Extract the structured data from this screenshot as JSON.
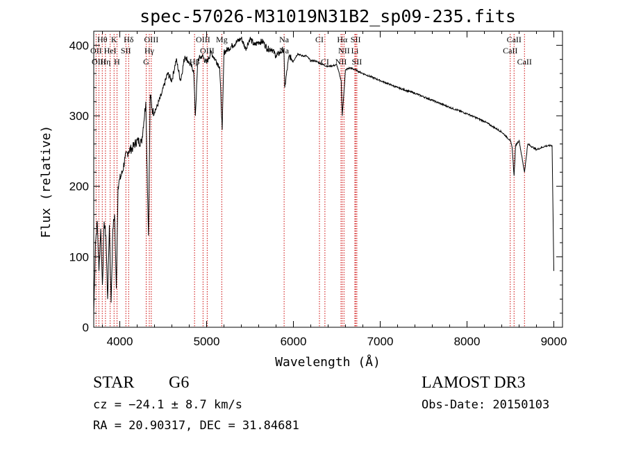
{
  "chart_data": {
    "type": "line",
    "title": "spec-57026-M31019N31B2_sp09-235.fits",
    "xlabel": "Wavelength (Å)",
    "ylabel": "Flux (relative)",
    "xlim": [
      3700,
      9100
    ],
    "ylim": [
      0,
      420
    ],
    "xticks": [
      4000,
      5000,
      6000,
      7000,
      8000,
      9000
    ],
    "yticks": [
      0,
      100,
      200,
      300,
      400
    ],
    "x_tick_labels": [
      "4000",
      "5000",
      "6000",
      "7000",
      "8000",
      "9000"
    ],
    "y_tick_labels": [
      "0",
      "100",
      "200",
      "300",
      "400"
    ],
    "grid": false,
    "series": [
      {
        "name": "flux",
        "x": [
          3700,
          3720,
          3740,
          3760,
          3780,
          3800,
          3820,
          3840,
          3860,
          3880,
          3900,
          3920,
          3940,
          3960,
          3980,
          4000,
          4030,
          4060,
          4100,
          4150,
          4200,
          4250,
          4300,
          4330,
          4350,
          4380,
          4420,
          4480,
          4550,
          4600,
          4650,
          4700,
          4750,
          4800,
          4850,
          4870,
          4900,
          4950,
          5000,
          5050,
          5100,
          5150,
          5180,
          5200,
          5250,
          5300,
          5350,
          5400,
          5450,
          5500,
          5550,
          5600,
          5650,
          5700,
          5750,
          5800,
          5850,
          5890,
          5900,
          5950,
          6000,
          6050,
          6100,
          6150,
          6200,
          6250,
          6300,
          6350,
          6400,
          6450,
          6500,
          6550,
          6563,
          6600,
          6650,
          6700,
          6800,
          6900,
          7000,
          7200,
          7400,
          7600,
          7800,
          8000,
          8200,
          8400,
          8498,
          8520,
          8542,
          8560,
          8600,
          8662,
          8700,
          8800,
          8900,
          8980,
          9000
        ],
        "y": [
          20,
          120,
          150,
          80,
          140,
          60,
          150,
          130,
          40,
          145,
          35,
          140,
          160,
          55,
          200,
          210,
          220,
          240,
          250,
          255,
          265,
          262,
          320,
          130,
          330,
          305,
          310,
          330,
          360,
          350,
          380,
          350,
          385,
          375,
          365,
          300,
          380,
          385,
          375,
          390,
          380,
          370,
          280,
          390,
          395,
          400,
          405,
          410,
          395,
          410,
          400,
          405,
          405,
          395,
          395,
          385,
          390,
          395,
          340,
          385,
          378,
          388,
          385,
          385,
          378,
          378,
          375,
          372,
          370,
          371,
          372,
          350,
          300,
          365,
          368,
          366,
          360,
          355,
          350,
          340,
          332,
          322,
          312,
          303,
          292,
          277,
          265,
          255,
          215,
          258,
          265,
          220,
          260,
          252,
          257,
          258,
          80
        ]
      }
    ],
    "annotations": [
      {
        "label": "Hθ",
        "x": 3798,
        "row": 0
      },
      {
        "label": "K",
        "x": 3934,
        "row": 0
      },
      {
        "label": "Hδ",
        "x": 4102,
        "row": 0
      },
      {
        "label": "OIII",
        "x": 4363,
        "row": 0
      },
      {
        "label": "OIII",
        "x": 4959,
        "row": 0
      },
      {
        "label": "Mg",
        "x": 5175,
        "row": 0
      },
      {
        "label": "Na",
        "x": 5893,
        "row": 0
      },
      {
        "label": "CI",
        "x": 6300,
        "row": 0
      },
      {
        "label": "Hα",
        "x": 6563,
        "row": 0
      },
      {
        "label": "SII",
        "x": 6717,
        "row": 0
      },
      {
        "label": "CaII",
        "x": 8542,
        "row": 0
      },
      {
        "label": "OII",
        "x": 3727,
        "row": 1
      },
      {
        "label": "HeI",
        "x": 3889,
        "row": 1
      },
      {
        "label": "SII",
        "x": 4070,
        "row": 1
      },
      {
        "label": "Hγ",
        "x": 4340,
        "row": 1
      },
      {
        "label": "OIII",
        "x": 5007,
        "row": 1
      },
      {
        "label": "Na",
        "x": 5893,
        "row": 1
      },
      {
        "label": "NII",
        "x": 6583,
        "row": 1
      },
      {
        "label": "Li",
        "x": 6708,
        "row": 1
      },
      {
        "label": "CaII",
        "x": 8498,
        "row": 1
      },
      {
        "label": "OIII",
        "x": 3759,
        "row": 2
      },
      {
        "label": "Hη",
        "x": 3835,
        "row": 2
      },
      {
        "label": "H",
        "x": 3968,
        "row": 2
      },
      {
        "label": "G",
        "x": 4304,
        "row": 2
      },
      {
        "label": "Hβ",
        "x": 4861,
        "row": 2
      },
      {
        "label": "CI",
        "x": 6363,
        "row": 2
      },
      {
        "label": "NII",
        "x": 6548,
        "row": 2
      },
      {
        "label": "SII",
        "x": 6731,
        "row": 2
      },
      {
        "label": "CaII",
        "x": 8662,
        "row": 2
      }
    ],
    "line_markers": [
      3727,
      3759,
      3798,
      3835,
      3889,
      3934,
      3968,
      4070,
      4102,
      4304,
      4340,
      4363,
      4861,
      4959,
      5007,
      5175,
      5893,
      6300,
      6363,
      6548,
      6563,
      6583,
      6708,
      6717,
      6731,
      8498,
      8542,
      8662
    ],
    "marker_color": "#cc0000",
    "line_color": "#000000"
  },
  "info": {
    "object_class": "STAR",
    "subclass": "G6",
    "survey": "LAMOST DR3",
    "cz": "cz = −24.1 ± 8.7 km/s",
    "obs_date": "Obs-Date: 20150103",
    "coords": "RA =  20.90317, DEC =  31.84681"
  }
}
